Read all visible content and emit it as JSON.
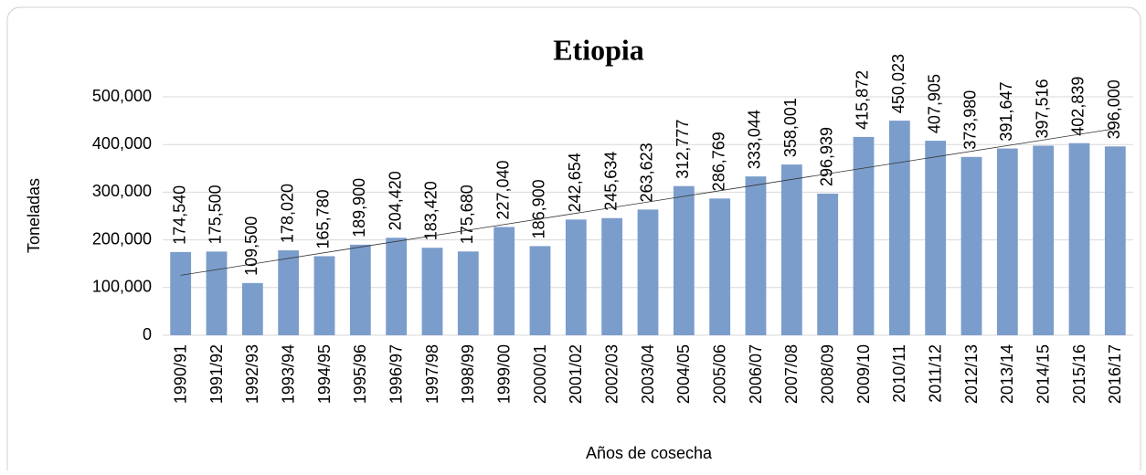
{
  "chart_data": {
    "type": "bar",
    "title": "Etiopia",
    "ylabel": "Toneladas",
    "xlabel": "Años de cosecha",
    "categories": [
      "1990/91",
      "1991/92",
      "1992/93",
      "1993/94",
      "1994/95",
      "1995/96",
      "1996/97",
      "1997/98",
      "1998/99",
      "1999/00",
      "2000/01",
      "2001/02",
      "2002/03",
      "2003/04",
      "2004/05",
      "2005/06",
      "2006/07",
      "2007/08",
      "2008/09",
      "2009/10",
      "2010/11",
      "2011/12",
      "2012/13",
      "2013/14",
      "2014/15",
      "2015/16",
      "2016/17"
    ],
    "values": [
      174540,
      175500,
      109500,
      178020,
      165780,
      189900,
      204420,
      183420,
      175680,
      227040,
      186900,
      242654,
      245634,
      263623,
      312777,
      286769,
      333044,
      358001,
      296939,
      415872,
      450023,
      407905,
      373980,
      391647,
      397516,
      402839,
      396000
    ],
    "value_labels": [
      "174,540",
      "175,500",
      "109,500",
      "178,020",
      "165,780",
      "189,900",
      "204,420",
      "183,420",
      "175,680",
      "227,040",
      "186,900",
      "242,654",
      "245,634",
      "263,623",
      "312,777",
      "286,769",
      "333,044",
      "358,001",
      "296,939",
      "415,872",
      "450,023",
      "407,905",
      "373,980",
      "391,647",
      "397,516",
      "402,839",
      "396,000"
    ],
    "color": "#7b9dcc",
    "ylim": [
      0,
      500000
    ],
    "yticks": [
      0,
      {
        "value": 100000,
        "label": "100,000"
      },
      {
        "value": 200000,
        "label": "200,000"
      },
      {
        "value": 300000,
        "label": "300,000"
      },
      {
        "value": 400000,
        "label": "400,000"
      },
      {
        "value": 500000,
        "label": "500,000"
      }
    ],
    "grid": true,
    "trendline": "linear"
  }
}
